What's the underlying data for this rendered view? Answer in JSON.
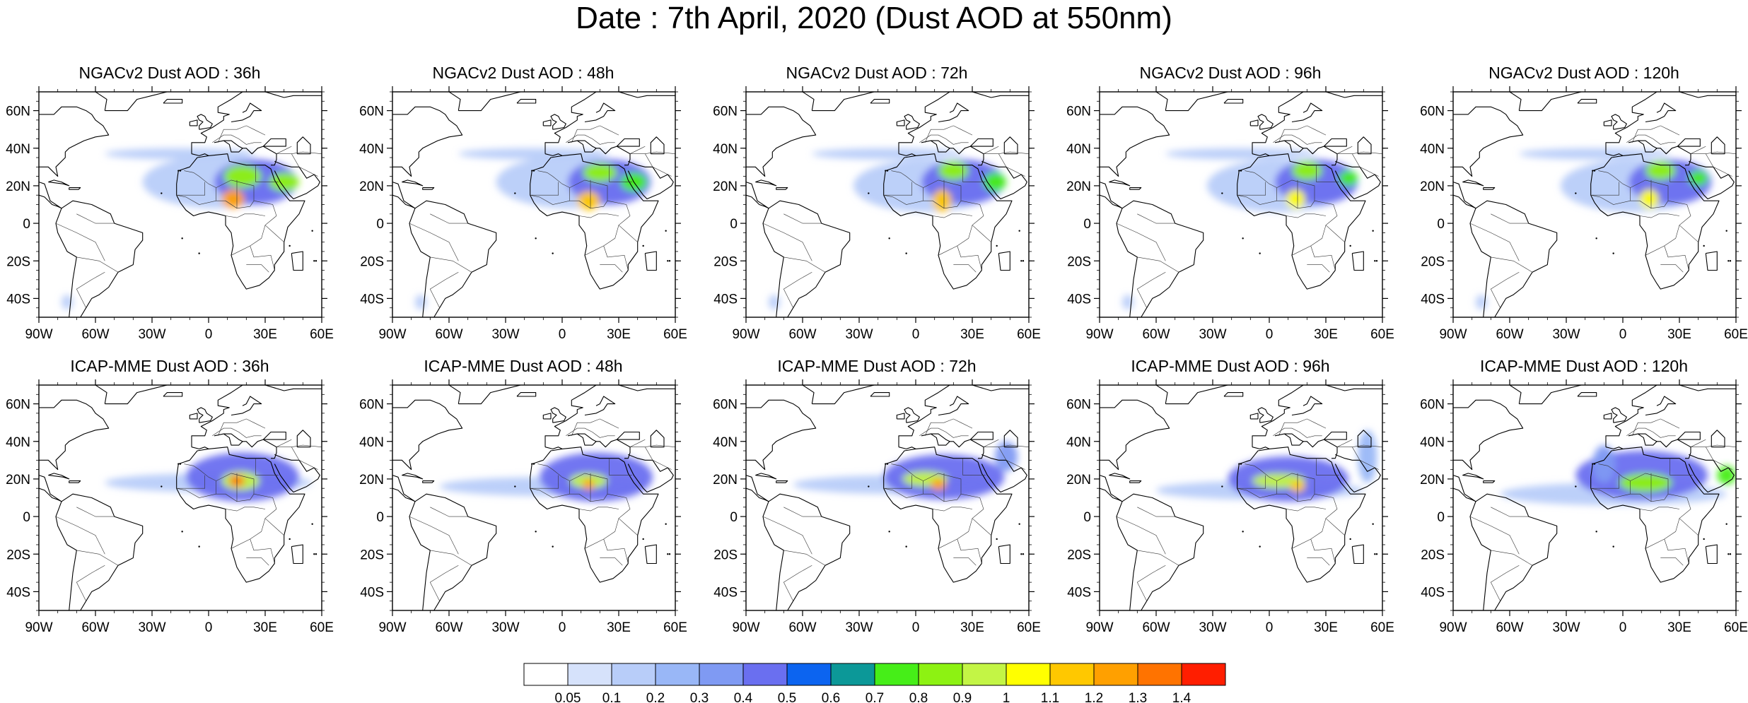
{
  "title": "Date : 7th April, 2020 (Dust AOD at 550nm)",
  "lat_labels": [
    "60N",
    "40N",
    "20N",
    "0",
    "20S",
    "40S"
  ],
  "lon_labels": [
    "90W",
    "60W",
    "30W",
    "0",
    "30E",
    "60E"
  ],
  "map_extent": {
    "lon": [
      -90,
      60
    ],
    "lat": [
      -50,
      70
    ]
  },
  "rows": [
    {
      "model": "NGACv2",
      "panels": [
        {
          "title": "NGACv2 Dust AOD : 36h",
          "lead": "36h"
        },
        {
          "title": "NGACv2 Dust AOD : 48h",
          "lead": "48h"
        },
        {
          "title": "NGACv2 Dust AOD : 72h",
          "lead": "72h"
        },
        {
          "title": "NGACv2 Dust AOD : 96h",
          "lead": "96h"
        },
        {
          "title": "NGACv2 Dust AOD : 120h",
          "lead": "120h"
        }
      ]
    },
    {
      "model": "ICAP-MME",
      "panels": [
        {
          "title": "ICAP-MME Dust AOD : 36h",
          "lead": "36h"
        },
        {
          "title": "ICAP-MME Dust AOD : 48h",
          "lead": "48h"
        },
        {
          "title": "ICAP-MME Dust AOD : 72h",
          "lead": "72h"
        },
        {
          "title": "ICAP-MME Dust AOD : 96h",
          "lead": "96h"
        },
        {
          "title": "ICAP-MME Dust AOD : 120h",
          "lead": "120h"
        }
      ]
    }
  ],
  "colorbar": {
    "levels": [
      "0.05",
      "0.1",
      "0.2",
      "0.3",
      "0.4",
      "0.5",
      "0.6",
      "0.7",
      "0.8",
      "0.9",
      "1",
      "1.1",
      "1.2",
      "1.3",
      "1.4"
    ],
    "colors": [
      "#ffffff",
      "#d6e2fb",
      "#b8cdf9",
      "#99b7f7",
      "#7f9af3",
      "#6a6ff0",
      "#0c64f0",
      "#0c9898",
      "#46ee18",
      "#8df212",
      "#c3f545",
      "#ffff00",
      "#ffc800",
      "#ffa000",
      "#ff7300",
      "#ff1e00"
    ]
  },
  "plumes": {
    "NGACv2": [
      {
        "lead": "36h",
        "blobs": [
          {
            "lon": 5,
            "lat": 22,
            "rx": 40,
            "ry": 14,
            "v": 0.15
          },
          {
            "lon": -15,
            "lat": 37,
            "rx": 40,
            "ry": 3,
            "v": 0.12
          },
          {
            "lon": 25,
            "lat": 22,
            "rx": 22,
            "ry": 12,
            "v": 0.45
          },
          {
            "lon": 18,
            "lat": 25,
            "rx": 10,
            "ry": 6,
            "v": 0.85
          },
          {
            "lon": 40,
            "lat": 22,
            "rx": 8,
            "ry": 5,
            "v": 0.8
          },
          {
            "lon": 13,
            "lat": 13,
            "rx": 6,
            "ry": 5,
            "v": 1.2
          },
          {
            "lon": -75,
            "lat": -42,
            "rx": 3,
            "ry": 4,
            "v": 0.15
          }
        ]
      },
      {
        "lead": "48h",
        "blobs": [
          {
            "lon": 5,
            "lat": 22,
            "rx": 40,
            "ry": 14,
            "v": 0.15
          },
          {
            "lon": -15,
            "lat": 37,
            "rx": 40,
            "ry": 3,
            "v": 0.12
          },
          {
            "lon": 25,
            "lat": 22,
            "rx": 22,
            "ry": 12,
            "v": 0.45
          },
          {
            "lon": 20,
            "lat": 27,
            "rx": 9,
            "ry": 5,
            "v": 0.85
          },
          {
            "lon": 38,
            "lat": 22,
            "rx": 7,
            "ry": 5,
            "v": 0.75
          },
          {
            "lon": 14,
            "lat": 12,
            "rx": 6,
            "ry": 5,
            "v": 1.15
          },
          {
            "lon": -75,
            "lat": -42,
            "rx": 3,
            "ry": 4,
            "v": 0.15
          }
        ]
      },
      {
        "lead": "72h",
        "blobs": [
          {
            "lon": 5,
            "lat": 20,
            "rx": 38,
            "ry": 14,
            "v": 0.15
          },
          {
            "lon": -15,
            "lat": 37,
            "rx": 40,
            "ry": 3,
            "v": 0.12
          },
          {
            "lon": 25,
            "lat": 22,
            "rx": 22,
            "ry": 12,
            "v": 0.45
          },
          {
            "lon": 20,
            "lat": 28,
            "rx": 8,
            "ry": 5,
            "v": 0.85
          },
          {
            "lon": 42,
            "lat": 22,
            "rx": 6,
            "ry": 5,
            "v": 0.75
          },
          {
            "lon": 14,
            "lat": 12,
            "rx": 5,
            "ry": 6,
            "v": 1.1
          },
          {
            "lon": -75,
            "lat": -42,
            "rx": 3,
            "ry": 4,
            "v": 0.15
          }
        ]
      },
      {
        "lead": "96h",
        "blobs": [
          {
            "lon": 5,
            "lat": 20,
            "rx": 38,
            "ry": 14,
            "v": 0.15
          },
          {
            "lon": -15,
            "lat": 37,
            "rx": 40,
            "ry": 3,
            "v": 0.12
          },
          {
            "lon": 25,
            "lat": 22,
            "rx": 22,
            "ry": 12,
            "v": 0.42
          },
          {
            "lon": 20,
            "lat": 28,
            "rx": 8,
            "ry": 5,
            "v": 0.85
          },
          {
            "lon": 42,
            "lat": 24,
            "rx": 5,
            "ry": 4,
            "v": 0.75
          },
          {
            "lon": 14,
            "lat": 13,
            "rx": 5,
            "ry": 5,
            "v": 1.05
          },
          {
            "lon": -75,
            "lat": -42,
            "rx": 3,
            "ry": 4,
            "v": 0.15
          }
        ]
      },
      {
        "lead": "120h",
        "blobs": [
          {
            "lon": 5,
            "lat": 20,
            "rx": 38,
            "ry": 14,
            "v": 0.15
          },
          {
            "lon": -15,
            "lat": 37,
            "rx": 40,
            "ry": 3,
            "v": 0.12
          },
          {
            "lon": 25,
            "lat": 22,
            "rx": 22,
            "ry": 12,
            "v": 0.42
          },
          {
            "lon": 20,
            "lat": 28,
            "rx": 8,
            "ry": 5,
            "v": 0.85
          },
          {
            "lon": 40,
            "lat": 24,
            "rx": 5,
            "ry": 4,
            "v": 0.7
          },
          {
            "lon": 14,
            "lat": 13,
            "rx": 5,
            "ry": 5,
            "v": 1.0
          },
          {
            "lon": -75,
            "lat": -42,
            "rx": 3,
            "ry": 4,
            "v": 0.15
          }
        ]
      }
    ],
    "ICAP-MME": [
      {
        "lead": "36h",
        "blobs": [
          {
            "lon": 0,
            "lat": 18,
            "rx": 55,
            "ry": 5,
            "v": 0.12
          },
          {
            "lon": 18,
            "lat": 21,
            "rx": 30,
            "ry": 13,
            "v": 0.4
          },
          {
            "lon": 17,
            "lat": 19,
            "rx": 10,
            "ry": 5,
            "v": 0.9
          },
          {
            "lon": 15,
            "lat": 19,
            "rx": 4,
            "ry": 3,
            "v": 1.3
          }
        ]
      },
      {
        "lead": "48h",
        "blobs": [
          {
            "lon": -10,
            "lat": 16,
            "rx": 55,
            "ry": 5,
            "v": 0.12
          },
          {
            "lon": 18,
            "lat": 21,
            "rx": 30,
            "ry": 13,
            "v": 0.4
          },
          {
            "lon": 14,
            "lat": 19,
            "rx": 10,
            "ry": 4,
            "v": 0.9
          },
          {
            "lon": 14,
            "lat": 17,
            "rx": 3,
            "ry": 3,
            "v": 1.25
          }
        ]
      },
      {
        "lead": "72h",
        "blobs": [
          {
            "lon": -10,
            "lat": 17,
            "rx": 55,
            "ry": 5,
            "v": 0.12
          },
          {
            "lon": 15,
            "lat": 21,
            "rx": 32,
            "ry": 12,
            "v": 0.4
          },
          {
            "lon": 5,
            "lat": 20,
            "rx": 12,
            "ry": 4,
            "v": 0.9
          },
          {
            "lon": 12,
            "lat": 17,
            "rx": 4,
            "ry": 3,
            "v": 1.2
          },
          {
            "lon": 48,
            "lat": 32,
            "rx": 6,
            "ry": 8,
            "v": 0.3
          }
        ]
      },
      {
        "lead": "96h",
        "blobs": [
          {
            "lon": -5,
            "lat": 14,
            "rx": 55,
            "ry": 5,
            "v": 0.12
          },
          {
            "lon": 10,
            "lat": 20,
            "rx": 32,
            "ry": 12,
            "v": 0.4
          },
          {
            "lon": 5,
            "lat": 19,
            "rx": 14,
            "ry": 4,
            "v": 0.9
          },
          {
            "lon": 15,
            "lat": 16,
            "rx": 4,
            "ry": 3,
            "v": 1.1
          },
          {
            "lon": 52,
            "lat": 32,
            "rx": 5,
            "ry": 14,
            "v": 0.2
          }
        ]
      },
      {
        "lead": "120h",
        "blobs": [
          {
            "lon": -5,
            "lat": 12,
            "rx": 60,
            "ry": 6,
            "v": 0.12
          },
          {
            "lon": 10,
            "lat": 22,
            "rx": 35,
            "ry": 13,
            "v": 0.4
          },
          {
            "lon": 12,
            "lat": 18,
            "rx": 14,
            "ry": 5,
            "v": 0.85
          },
          {
            "lon": -10,
            "lat": 28,
            "rx": 6,
            "ry": 10,
            "v": 0.3
          },
          {
            "lon": 55,
            "lat": 22,
            "rx": 5,
            "ry": 5,
            "v": 0.7
          }
        ]
      }
    ]
  }
}
